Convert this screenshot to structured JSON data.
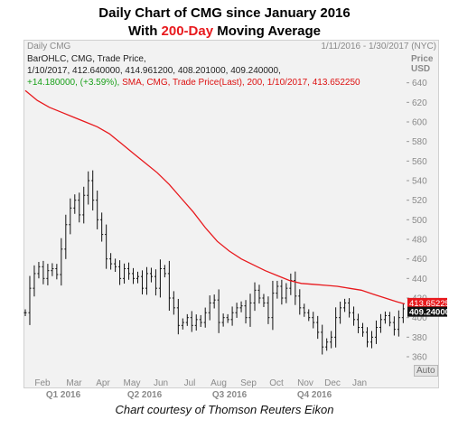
{
  "title_line1": "Daily Chart of CMG since January 2016",
  "title_line2_prefix": "With ",
  "title_line2_highlight": "200-Day",
  "title_line2_suffix": " Moving Average",
  "panel": {
    "name": "Daily CMG",
    "date_range": "1/11/2016 - 1/30/2017 (NYC)",
    "price_header": "Price",
    "currency": "USD",
    "auto_label": "Auto"
  },
  "info": {
    "line1": "BarOHLC, CMG, Trade Price,",
    "line2": "1/10/2017, 412.640000, 414.961200, 408.201000, 409.240000,",
    "line3_change": "+14.180000, (+3.59%),",
    "line3_sma": "SMA, CMG, Trade Price(Last),  200,  1/10/2017, 413.652250"
  },
  "caption": "Chart courtesy of Thomson Reuters Eikon",
  "colors": {
    "sma": "#e8191d",
    "bars": "#111111",
    "price_tag": "#111111",
    "sma_tag": "#e8191d"
  },
  "chart_data": {
    "type": "line",
    "y_ticks": [
      360,
      380,
      400,
      420,
      440,
      460,
      480,
      500,
      520,
      540,
      560,
      580,
      600,
      620,
      640
    ],
    "ylim": [
      348,
      660
    ],
    "x_months": [
      "Feb",
      "Mar",
      "Apr",
      "May",
      "Jun",
      "Jul",
      "Aug",
      "Sep",
      "Oct",
      "Nov",
      "Dec",
      "Jan"
    ],
    "x_quarters": [
      "Q1 2016",
      "Q2 2016",
      "Q3 2016",
      "Q4 2016"
    ],
    "last_price_label": "409.240000",
    "sma_label": "413.652250",
    "series": [
      {
        "name": "SMA, CMG, Trade Price(Last), 200",
        "style": "line",
        "values": [
          [
            0,
            632
          ],
          [
            8,
            622
          ],
          [
            16,
            615
          ],
          [
            24,
            610
          ],
          [
            32,
            605
          ],
          [
            40,
            600
          ],
          [
            48,
            595
          ],
          [
            56,
            588
          ],
          [
            64,
            578
          ],
          [
            72,
            568
          ],
          [
            80,
            558
          ],
          [
            88,
            548
          ],
          [
            96,
            536
          ],
          [
            104,
            522
          ],
          [
            112,
            508
          ],
          [
            120,
            492
          ],
          [
            128,
            478
          ],
          [
            136,
            468
          ],
          [
            144,
            460
          ],
          [
            152,
            454
          ],
          [
            160,
            448
          ],
          [
            168,
            443
          ],
          [
            176,
            438
          ],
          [
            184,
            435
          ],
          [
            192,
            434
          ],
          [
            200,
            433
          ],
          [
            208,
            432
          ],
          [
            216,
            430
          ],
          [
            224,
            428
          ],
          [
            232,
            424
          ],
          [
            240,
            420
          ],
          [
            248,
            416
          ],
          [
            253,
            414
          ]
        ]
      },
      {
        "name": "BarOHLC, CMG, Trade Price",
        "style": "ohlc-close",
        "values": [
          [
            0,
            405
          ],
          [
            3,
            430
          ],
          [
            6,
            445
          ],
          [
            9,
            452
          ],
          [
            12,
            440
          ],
          [
            15,
            448
          ],
          [
            18,
            450
          ],
          [
            21,
            444
          ],
          [
            24,
            470
          ],
          [
            27,
            495
          ],
          [
            30,
            512
          ],
          [
            33,
            520
          ],
          [
            36,
            505
          ],
          [
            39,
            525
          ],
          [
            42,
            540
          ],
          [
            45,
            520
          ],
          [
            48,
            500
          ],
          [
            51,
            485
          ],
          [
            54,
            460
          ],
          [
            57,
            455
          ],
          [
            60,
            452
          ],
          [
            63,
            440
          ],
          [
            66,
            450
          ],
          [
            69,
            445
          ],
          [
            72,
            440
          ],
          [
            75,
            442
          ],
          [
            78,
            430
          ],
          [
            81,
            445
          ],
          [
            84,
            442
          ],
          [
            87,
            430
          ],
          [
            90,
            450
          ],
          [
            93,
            445
          ],
          [
            96,
            420
          ],
          [
            99,
            410
          ],
          [
            102,
            392
          ],
          [
            105,
            395
          ],
          [
            108,
            400
          ],
          [
            111,
            392
          ],
          [
            114,
            398
          ],
          [
            117,
            395
          ],
          [
            120,
            405
          ],
          [
            123,
            415
          ],
          [
            126,
            418
          ],
          [
            129,
            395
          ],
          [
            132,
            400
          ],
          [
            135,
            398
          ],
          [
            138,
            405
          ],
          [
            141,
            410
          ],
          [
            144,
            412
          ],
          [
            147,
            400
          ],
          [
            150,
            415
          ],
          [
            153,
            428
          ],
          [
            156,
            420
          ],
          [
            159,
            415
          ],
          [
            162,
            400
          ],
          [
            165,
            425
          ],
          [
            168,
            432
          ],
          [
            171,
            420
          ],
          [
            174,
            430
          ],
          [
            177,
            438
          ],
          [
            180,
            422
          ],
          [
            183,
            410
          ],
          [
            186,
            405
          ],
          [
            189,
            400
          ],
          [
            192,
            395
          ],
          [
            195,
            385
          ],
          [
            198,
            370
          ],
          [
            201,
            375
          ],
          [
            204,
            380
          ],
          [
            207,
            400
          ],
          [
            210,
            410
          ],
          [
            213,
            415
          ],
          [
            216,
            405
          ],
          [
            219,
            398
          ],
          [
            222,
            390
          ],
          [
            225,
            385
          ],
          [
            228,
            375
          ],
          [
            231,
            380
          ],
          [
            234,
            390
          ],
          [
            237,
            398
          ],
          [
            240,
            402
          ],
          [
            243,
            395
          ],
          [
            246,
            388
          ],
          [
            249,
            400
          ],
          [
            252,
            409
          ]
        ]
      }
    ]
  }
}
